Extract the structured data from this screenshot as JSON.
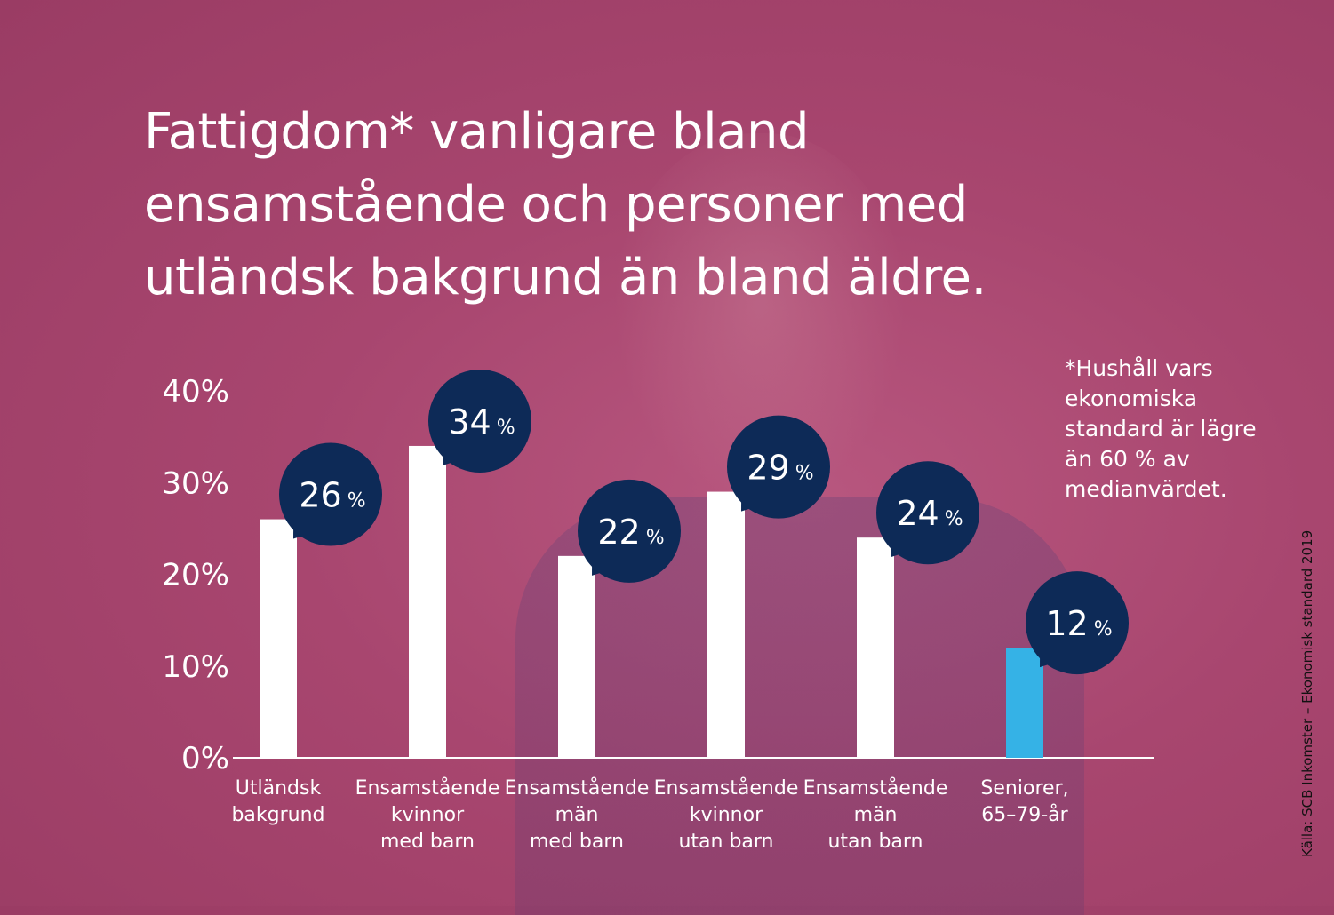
{
  "title_lines": [
    "Fattigdom* vanligare bland",
    "ensamstående och personer med",
    "utländsk bakgrund än bland äldre."
  ],
  "footnote_lines": [
    "*Hushåll vars",
    "ekonomiska",
    "standard är lägre",
    "än 60 % av",
    "medianvärdet."
  ],
  "source": "Källa: SCB Inkomster – Ekonomisk standard 2019",
  "colors": {
    "bar": "#ffffff",
    "bar_highlight": "#35b2e6",
    "bubble": "#0d2a57",
    "text": "#ffffff"
  },
  "chart_data": {
    "type": "bar",
    "ylim": [
      0,
      40
    ],
    "y_ticks": [
      "0%",
      "10%",
      "20%",
      "30%",
      "40%"
    ],
    "categories": [
      [
        "Utländsk",
        "bakgrund"
      ],
      [
        "Ensamstående",
        "kvinnor",
        "med barn"
      ],
      [
        "Ensamstående",
        "män",
        "med barn"
      ],
      [
        "Ensamstående",
        "kvinnor",
        "utan barn"
      ],
      [
        "Ensamstående",
        "män",
        "utan barn"
      ],
      [
        "Seniorer,",
        "65–79-år"
      ]
    ],
    "values": [
      26,
      34,
      22,
      29,
      24,
      12
    ],
    "data_labels": [
      "26",
      "34",
      "22",
      "29",
      "24",
      "12"
    ],
    "data_label_unit": "%",
    "highlight_index": 5
  }
}
